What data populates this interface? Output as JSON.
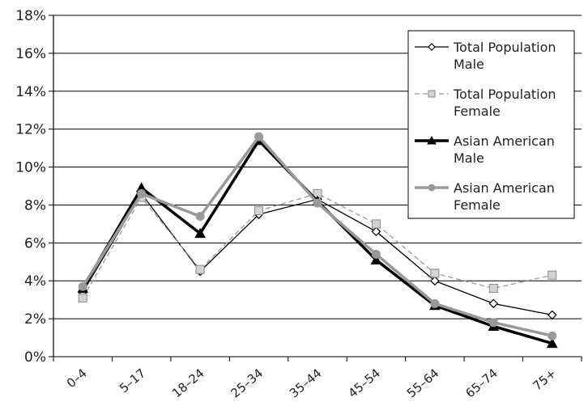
{
  "chart_data": {
    "type": "line",
    "categories": [
      "0–4",
      "5–17",
      "18–24",
      "25–34",
      "35–44",
      "45–54",
      "55–64",
      "65–74",
      "75+"
    ],
    "ylim": [
      0,
      18
    ],
    "yticks": [
      "0%",
      "2%",
      "4%",
      "6%",
      "8%",
      "10%",
      "12%",
      "14%",
      "16%",
      "18%"
    ],
    "grid": "horizontal",
    "legend_position": "top-right",
    "series": [
      {
        "name": "Total Population Male",
        "values": [
          3.4,
          8.6,
          4.5,
          7.5,
          8.3,
          6.6,
          4.0,
          2.8,
          2.2
        ],
        "color": "#000000",
        "marker": "diamond-open",
        "dash": "solid",
        "width": 1.3
      },
      {
        "name": "Total Population Female",
        "values": [
          3.1,
          8.4,
          4.6,
          7.7,
          8.6,
          7.0,
          4.4,
          3.6,
          4.3
        ],
        "color": "#999999",
        "marker": "square-filled",
        "dash": "dashed",
        "width": 1.3
      },
      {
        "name": "Asian American Male",
        "values": [
          3.6,
          8.9,
          6.5,
          11.4,
          8.2,
          5.1,
          2.7,
          1.6,
          0.7
        ],
        "color": "#000000",
        "marker": "triangle-filled",
        "dash": "solid",
        "width": 3.5
      },
      {
        "name": "Asian American Female",
        "values": [
          3.7,
          8.6,
          7.4,
          11.6,
          8.1,
          5.4,
          2.8,
          1.8,
          1.1
        ],
        "color": "#999999",
        "marker": "circle-filled",
        "dash": "solid",
        "width": 3.5
      }
    ],
    "legend_lines": [
      [
        "Total Population",
        "Male"
      ],
      [
        "Total Population",
        "Female"
      ],
      [
        "Asian American",
        "Male"
      ],
      [
        "Asian American",
        "Female"
      ]
    ]
  }
}
